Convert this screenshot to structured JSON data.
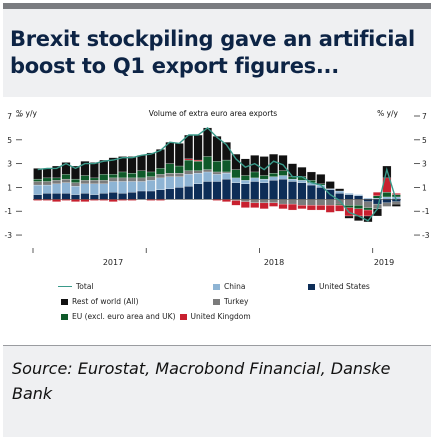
{
  "title": "Brexit stockpiling gave an artificial boost to Q1 export figures...",
  "source": "Source: Eurostat, Macrobond Financial, Danske Bank",
  "chart_data": {
    "type": "bar",
    "subtype": "stacked bar with total line",
    "title": "Volume of extra euro area exports",
    "ylabel_left": "% y/y",
    "ylabel_right": "% y/y",
    "ylim": [
      -3.5,
      7
    ],
    "yticks": [
      -3,
      -1,
      1,
      3,
      5,
      7
    ],
    "ytick_labels": [
      "-3",
      "-1",
      "1",
      "3",
      "5",
      "7"
    ],
    "xtick_labels": [
      "2017",
      "2018",
      "2019"
    ],
    "grid": false,
    "legend_position": "bottom",
    "series": [
      {
        "name": "United States",
        "color": "#0d2d57",
        "values": [
          0.4,
          0.5,
          0.5,
          0.5,
          0.4,
          0.5,
          0.4,
          0.5,
          0.6,
          0.5,
          0.6,
          0.7,
          0.7,
          0.8,
          0.9,
          1.0,
          1.1,
          1.3,
          1.5,
          1.5,
          1.7,
          1.4,
          1.3,
          1.5,
          1.4,
          1.6,
          1.7,
          1.5,
          1.4,
          1.2,
          1.0,
          0.8,
          0.5,
          0.4,
          0.3,
          -0.2,
          -0.4,
          -0.3,
          -0.2
        ]
      },
      {
        "name": "China",
        "color": "#8eb4d4",
        "values": [
          0.8,
          0.7,
          0.8,
          0.9,
          0.7,
          0.8,
          0.9,
          0.8,
          0.9,
          1.0,
          0.9,
          0.8,
          0.9,
          1.0,
          1.0,
          0.9,
          1.0,
          0.9,
          0.8,
          0.6,
          0.5,
          0.4,
          0.3,
          0.3,
          0.3,
          0.3,
          0.3,
          0.2,
          0.2,
          0.2,
          0.2,
          0.1,
          0.2,
          0.1,
          0.1,
          0.1,
          0.1,
          0.2,
          0.2
        ]
      },
      {
        "name": "Turkey",
        "color": "#7b7b7b",
        "values": [
          0.3,
          0.3,
          0.3,
          0.3,
          0.3,
          0.3,
          0.3,
          0.3,
          0.3,
          0.3,
          0.3,
          0.3,
          0.3,
          0.3,
          0.3,
          0.3,
          0.3,
          0.2,
          0.2,
          0.2,
          0.1,
          -0.1,
          -0.2,
          -0.3,
          -0.3,
          -0.3,
          -0.4,
          -0.4,
          -0.5,
          -0.5,
          -0.5,
          -0.5,
          -0.4,
          -0.5,
          -0.5,
          -0.5,
          -0.4,
          -0.3,
          -0.2
        ]
      },
      {
        "name": "EU (excl. euro area and UK)",
        "color": "#0f5a2a",
        "values": [
          0.2,
          0.3,
          0.2,
          0.4,
          0.3,
          0.4,
          0.2,
          0.5,
          0.3,
          0.5,
          0.4,
          0.6,
          0.4,
          0.5,
          0.8,
          0.6,
          0.9,
          0.8,
          1.1,
          0.9,
          1.0,
          0.7,
          0.4,
          0.5,
          0.3,
          0.3,
          0.4,
          0.2,
          0.3,
          0.2,
          0.1,
          0.0,
          -0.1,
          -0.2,
          -0.3,
          -0.2,
          0.2,
          0.4,
          0.2
        ]
      },
      {
        "name": "United Kingdom",
        "color": "#c8202f",
        "values": [
          -0.1,
          -0.1,
          -0.2,
          -0.1,
          -0.2,
          -0.2,
          -0.1,
          -0.1,
          -0.2,
          -0.1,
          -0.1,
          0.0,
          -0.1,
          -0.1,
          0.0,
          0.0,
          0.1,
          0.1,
          0.0,
          -0.1,
          -0.2,
          -0.4,
          -0.5,
          -0.4,
          -0.5,
          -0.3,
          -0.4,
          -0.5,
          -0.3,
          -0.4,
          -0.4,
          -0.6,
          -0.5,
          -0.7,
          -0.6,
          -0.5,
          0.3,
          1.2,
          0.1
        ]
      },
      {
        "name": "Rest of world (All)",
        "color": "#111111",
        "values": [
          0.9,
          0.8,
          1.0,
          1.0,
          1.1,
          1.2,
          1.3,
          1.2,
          1.4,
          1.3,
          1.4,
          1.3,
          1.6,
          1.6,
          1.8,
          1.9,
          2.0,
          2.1,
          2.4,
          2.1,
          1.5,
          1.3,
          1.4,
          1.4,
          1.6,
          1.6,
          1.3,
          1.1,
          0.8,
          0.7,
          0.8,
          0.6,
          0.2,
          -0.2,
          -0.4,
          -0.5,
          -0.6,
          1.0,
          -0.2
        ]
      }
    ],
    "total": {
      "name": "Total",
      "color": "#3a9a8a",
      "values": [
        2.5,
        2.6,
        2.6,
        3.0,
        2.6,
        3.0,
        3.0,
        3.2,
        3.3,
        3.5,
        3.5,
        3.7,
        3.8,
        4.1,
        4.8,
        4.7,
        5.4,
        5.4,
        6.0,
        5.2,
        4.6,
        3.4,
        2.7,
        3.0,
        2.5,
        3.2,
        2.9,
        1.9,
        1.9,
        1.4,
        1.2,
        0.4,
        -0.1,
        -1.1,
        -1.4,
        -1.8,
        -0.8,
        2.5,
        -0.1
      ]
    }
  },
  "legend": [
    {
      "name": "Total",
      "kind": "line",
      "color": "#3a9a8a"
    },
    {
      "name": "China",
      "kind": "box",
      "color": "#8eb4d4"
    },
    {
      "name": "United States",
      "kind": "box",
      "color": "#0d2d57"
    },
    {
      "name": "Rest of world (All)",
      "kind": "box",
      "color": "#111111"
    },
    {
      "name": "Turkey",
      "kind": "box",
      "color": "#7b7b7b"
    },
    {
      "name": "EU (excl. euro area and UK)",
      "kind": "box",
      "color": "#0f5a2a"
    },
    {
      "name": "United Kingdom",
      "kind": "box",
      "color": "#c8202f"
    }
  ]
}
